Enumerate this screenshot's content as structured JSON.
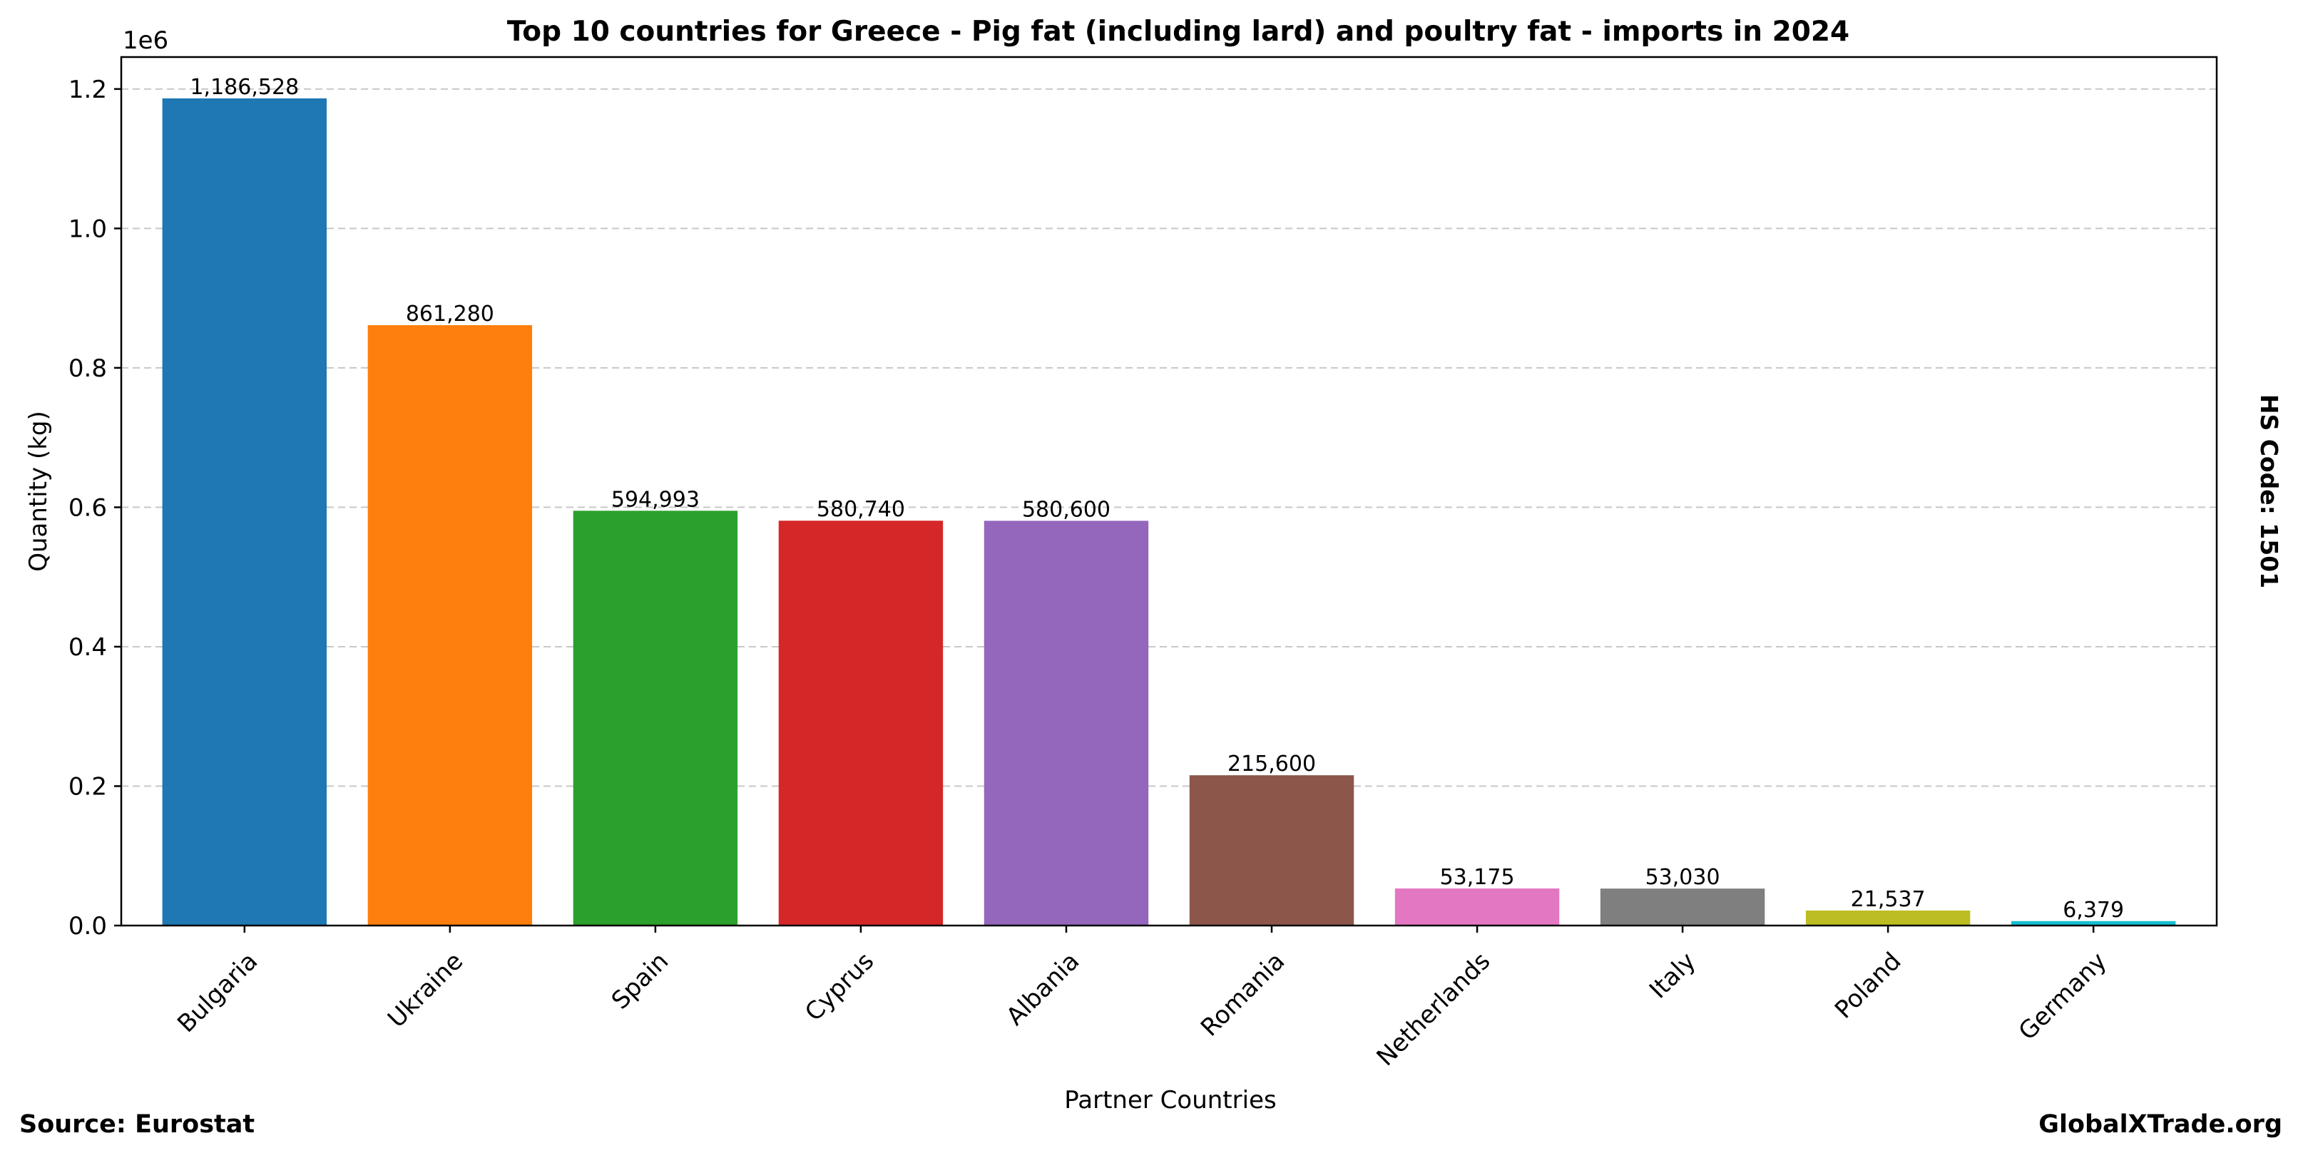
{
  "chart_data": {
    "type": "bar",
    "title": "Top 10 countries for Greece - Pig fat (including lard) and poultry fat - imports in 2024",
    "xlabel": "Partner Countries",
    "ylabel": "Quantity (kg)",
    "y_offset_label": "1e6",
    "categories": [
      "Bulgaria",
      "Ukraine",
      "Spain",
      "Cyprus",
      "Albania",
      "Romania",
      "Netherlands",
      "Italy",
      "Poland",
      "Germany"
    ],
    "values": [
      1186528,
      861280,
      594993,
      580740,
      580600,
      215600,
      53175,
      53030,
      21537,
      6379
    ],
    "value_labels": [
      "1,186,528",
      "861,280",
      "594,993",
      "580,740",
      "580,600",
      "215,600",
      "53,175",
      "53,030",
      "21,537",
      "6,379"
    ],
    "colors": [
      "#1f77b4",
      "#ff7f0e",
      "#2ca02c",
      "#d62728",
      "#9467bd",
      "#8c564b",
      "#e377c2",
      "#7f7f7f",
      "#bcbd22",
      "#17becf"
    ],
    "ylim": [
      0,
      1245854
    ],
    "yticks": [
      0,
      200000,
      400000,
      600000,
      800000,
      1000000,
      1200000
    ],
    "ytick_labels": [
      "0.0",
      "0.2",
      "0.4",
      "0.6",
      "0.8",
      "1.0",
      "1.2"
    ],
    "grid": "y-dashed",
    "legend": "none"
  },
  "annotations": {
    "hs_code": "HS Code: 1501",
    "source": "Source: Eurostat",
    "brand": "GlobalXTrade.org"
  }
}
